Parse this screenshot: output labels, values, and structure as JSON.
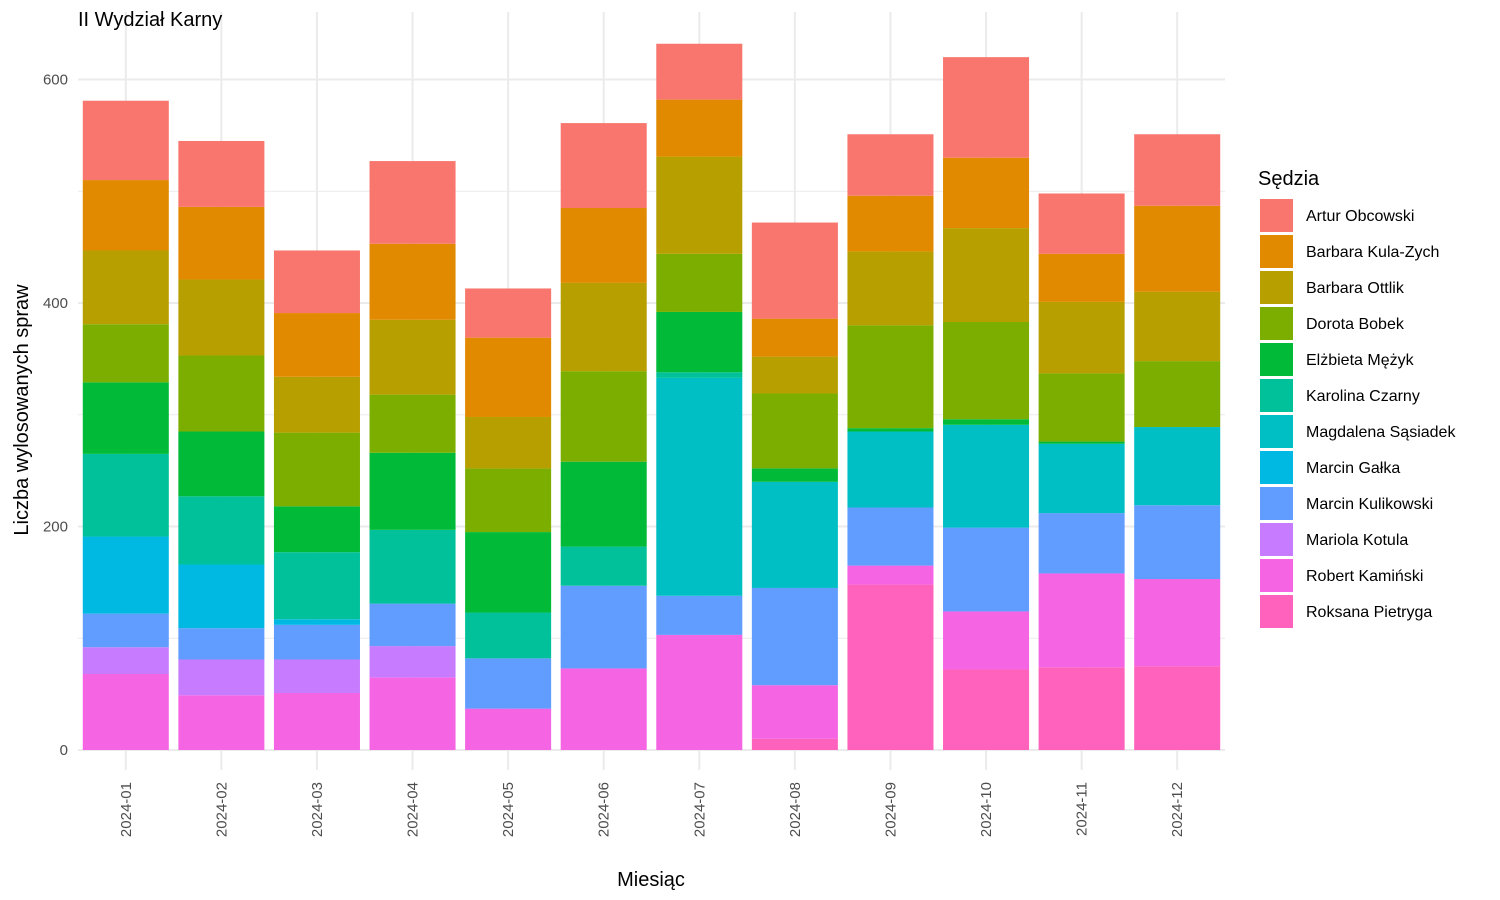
{
  "chart_data": {
    "type": "bar",
    "stacked": true,
    "title": "II Wydział Karny",
    "xlabel": "Miesiąc",
    "ylabel": "Liczba wylosowanych spraw",
    "ylim": [
      -25,
      650
    ],
    "yticks": [
      0,
      200,
      400,
      600
    ],
    "grid": true,
    "legend_title": "Sędzia",
    "legend_position": "right",
    "categories": [
      "2024-01",
      "2024-02",
      "2024-03",
      "2024-04",
      "2024-05",
      "2024-06",
      "2024-07",
      "2024-08",
      "2024-09",
      "2024-10",
      "2024-11",
      "2024-12"
    ],
    "series": [
      {
        "name": "Roksana Pietryga",
        "color": "#FF62BC",
        "values": [
          0,
          0,
          0,
          0,
          0,
          0,
          0,
          10,
          148,
          72,
          74,
          75
        ]
      },
      {
        "name": "Robert Kamiński",
        "color": "#F564E3",
        "values": [
          68,
          49,
          51,
          65,
          37,
          73,
          103,
          48,
          17,
          52,
          84,
          78
        ]
      },
      {
        "name": "Mariola Kotula",
        "color": "#C77CFF",
        "values": [
          24,
          32,
          30,
          28,
          0,
          0,
          0,
          0,
          0,
          0,
          0,
          0
        ]
      },
      {
        "name": "Marcin Kulikowski",
        "color": "#619CFF",
        "values": [
          30,
          28,
          31,
          38,
          45,
          74,
          35,
          87,
          52,
          75,
          54,
          66
        ]
      },
      {
        "name": "Marcin Gałka",
        "color": "#00B9E3",
        "values": [
          69,
          57,
          5,
          0,
          0,
          0,
          0,
          0,
          0,
          0,
          0,
          0
        ]
      },
      {
        "name": "Magdalena Sąsiadek",
        "color": "#00BFC4",
        "values": [
          0,
          0,
          0,
          0,
          0,
          0,
          195,
          95,
          68,
          92,
          62,
          70
        ]
      },
      {
        "name": "Karolina Czarny",
        "color": "#00C19A",
        "values": [
          74,
          61,
          60,
          66,
          41,
          35,
          5,
          0,
          0,
          0,
          0,
          0
        ]
      },
      {
        "name": "Elżbieta Mężyk",
        "color": "#00BA38",
        "values": [
          64,
          58,
          41,
          69,
          72,
          76,
          54,
          12,
          3,
          5,
          2,
          0
        ]
      },
      {
        "name": "Dorota Bobek",
        "color": "#7CAE00",
        "values": [
          52,
          68,
          66,
          52,
          57,
          81,
          52,
          67,
          92,
          87,
          61,
          59
        ]
      },
      {
        "name": "Barbara Ottlik",
        "color": "#B79F00",
        "values": [
          66,
          68,
          50,
          67,
          46,
          79,
          87,
          33,
          66,
          84,
          64,
          62
        ]
      },
      {
        "name": "Barbara Kula-Zych",
        "color": "#E18A00",
        "values": [
          63,
          65,
          57,
          68,
          71,
          67,
          51,
          34,
          50,
          63,
          43,
          77
        ]
      },
      {
        "name": "Artur Obcowski",
        "color": "#F8766D",
        "values": [
          71,
          59,
          56,
          74,
          44,
          76,
          50,
          86,
          55,
          90,
          54,
          64
        ]
      }
    ]
  }
}
